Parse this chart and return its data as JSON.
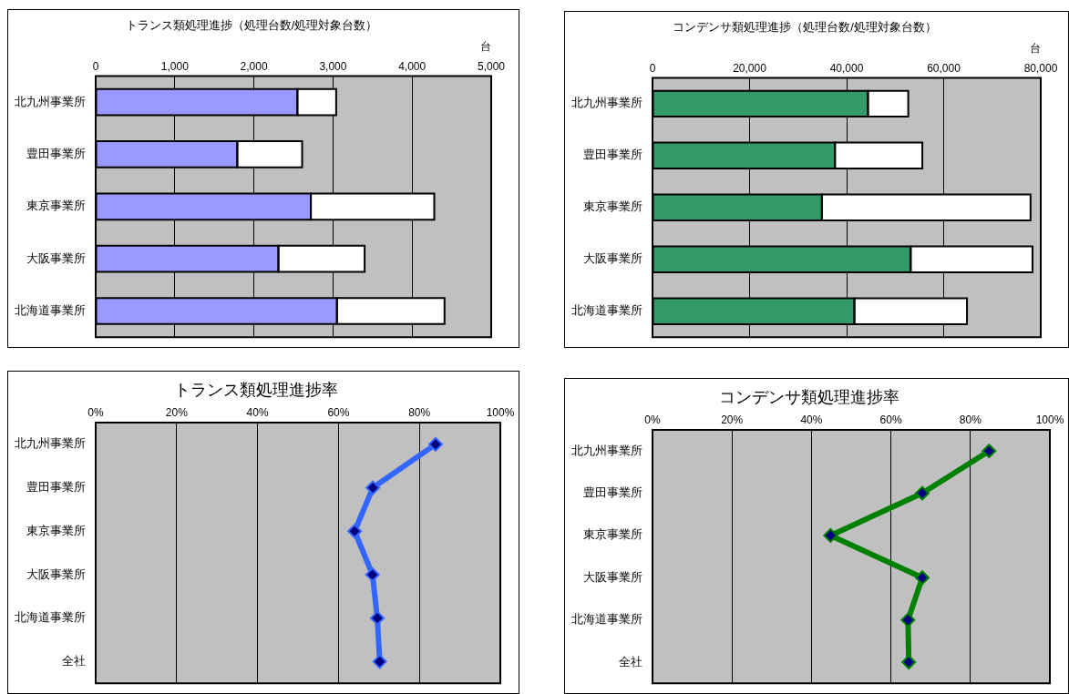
{
  "chart_data": [
    {
      "type": "bar",
      "orientation": "horizontal",
      "stacked": true,
      "title": "トランス類処理進捗（処理台数/処理対象台数）",
      "xlabel": "台",
      "categories": [
        "北九州事業所",
        "豊田事業所",
        "東京事業所",
        "大阪事業所",
        "北海道事業所"
      ],
      "series": [
        {
          "color": "#9999ff",
          "values": [
            2550,
            1790,
            2720,
            2310,
            3050
          ]
        },
        {
          "color": "#ffffff",
          "values": [
            490,
            820,
            1560,
            1090,
            1360
          ]
        }
      ],
      "xlim": [
        0,
        5000
      ],
      "xticks": [
        {
          "value": 0,
          "label": "0"
        },
        {
          "value": 1000,
          "label": "1,000"
        },
        {
          "value": 2000,
          "label": "2,000"
        },
        {
          "value": 3000,
          "label": "3,000"
        },
        {
          "value": 4000,
          "label": "4,000"
        },
        {
          "value": 5000,
          "label": "5,000"
        }
      ],
      "grid": "x"
    },
    {
      "type": "bar",
      "orientation": "horizontal",
      "stacked": true,
      "title": "コンデンサ類処理進捗（処理台数/処理対象台数）",
      "xlabel": "台",
      "categories": [
        "北九州事業所",
        "豊田事業所",
        "東京事業所",
        "大阪事業所",
        "北海道事業所"
      ],
      "series": [
        {
          "color": "#339966",
          "values": [
            44400,
            37600,
            34900,
            53200,
            41600
          ]
        },
        {
          "color": "#ffffff",
          "values": [
            8300,
            18000,
            43000,
            25100,
            23200
          ]
        }
      ],
      "xlim": [
        0,
        80000
      ],
      "xticks": [
        {
          "value": 0,
          "label": "0"
        },
        {
          "value": 20000,
          "label": "20,000"
        },
        {
          "value": 40000,
          "label": "40,000"
        },
        {
          "value": 60000,
          "label": "60,000"
        },
        {
          "value": 80000,
          "label": "80,000"
        }
      ],
      "grid": "x"
    },
    {
      "type": "line",
      "orientation": "horizontal",
      "marker": "diamond",
      "title": "トランス類処理進捗率",
      "categories": [
        "北九州事業所",
        "豊田事業所",
        "東京事業所",
        "大阪事業所",
        "北海道事業所",
        "全社"
      ],
      "series": [
        {
          "color": "#3366ff",
          "values": [
            84,
            68.5,
            64,
            68.4,
            69.6,
            70.2
          ]
        }
      ],
      "xlim": [
        0,
        100
      ],
      "xticks": [
        {
          "value": 0,
          "label": "0%"
        },
        {
          "value": 20,
          "label": "20%"
        },
        {
          "value": 40,
          "label": "40%"
        },
        {
          "value": 60,
          "label": "60%"
        },
        {
          "value": 80,
          "label": "80%"
        },
        {
          "value": 100,
          "label": "100%"
        }
      ],
      "grid": "x"
    },
    {
      "type": "line",
      "orientation": "horizontal",
      "marker": "diamond",
      "title": "コンデンサ類処理進捗率",
      "categories": [
        "北九州事業所",
        "豊田事業所",
        "東京事業所",
        "大阪事業所",
        "北海道事業所",
        "全社"
      ],
      "series": [
        {
          "color": "#008000",
          "values": [
            84.7,
            67.9,
            44.8,
            67.9,
            64.3,
            64.5
          ]
        }
      ],
      "xlim": [
        0,
        100
      ],
      "xticks": [
        {
          "value": 0,
          "label": "0%"
        },
        {
          "value": 20,
          "label": "20%"
        },
        {
          "value": 40,
          "label": "40%"
        },
        {
          "value": 60,
          "label": "60%"
        },
        {
          "value": 80,
          "label": "80%"
        },
        {
          "value": 100,
          "label": "100%"
        }
      ],
      "grid": "x"
    }
  ]
}
